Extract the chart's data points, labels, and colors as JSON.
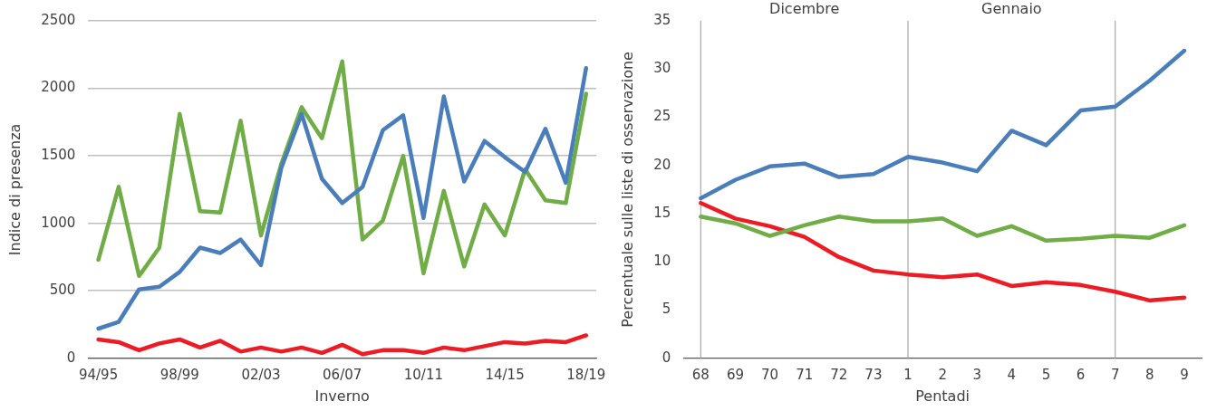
{
  "chart_data": [
    {
      "type": "line",
      "xlabel": "Inverno",
      "ylabel": "Indice di presenza",
      "categories": [
        "94/95",
        null,
        null,
        null,
        "98/99",
        null,
        null,
        null,
        "02/03",
        null,
        null,
        null,
        "06/07",
        null,
        null,
        null,
        "10/11",
        null,
        null,
        null,
        "14/15",
        null,
        null,
        null,
        "18/19"
      ],
      "series": [
        {
          "color": "#4a7ebb",
          "values": [
            220,
            270,
            510,
            530,
            640,
            820,
            780,
            880,
            690,
            1410,
            1810,
            1330,
            1150,
            1270,
            1690,
            1800,
            1040,
            1940,
            1310,
            1610,
            1490,
            1380,
            1700,
            1300,
            2150
          ]
        },
        {
          "color": "#70ad47",
          "values": [
            730,
            1270,
            610,
            820,
            1810,
            1090,
            1080,
            1760,
            910,
            1440,
            1860,
            1630,
            2200,
            880,
            1020,
            1500,
            630,
            1240,
            680,
            1140,
            910,
            1400,
            1170,
            1150,
            1960
          ]
        },
        {
          "color": "#ed1c24",
          "values": [
            140,
            120,
            60,
            110,
            140,
            80,
            130,
            50,
            80,
            50,
            80,
            40,
            100,
            30,
            60,
            60,
            40,
            80,
            60,
            90,
            120,
            110,
            130,
            120,
            170
          ]
        }
      ],
      "ylim": [
        0,
        2500
      ],
      "yticks": [
        0,
        500,
        1000,
        1500,
        2000,
        2500
      ],
      "grid": "y",
      "line_style": "solid"
    },
    {
      "type": "line",
      "xlabel": "Pentadi",
      "ylabel": "Percentuale sulle liste di osservazione",
      "categories": [
        "68",
        "69",
        "70",
        "71",
        "72",
        "73",
        "1",
        "2",
        "3",
        "4",
        "5",
        "6",
        "7",
        "8",
        "9"
      ],
      "series": [
        {
          "color": "#4a7ebb",
          "values": [
            16.6,
            18.5,
            19.9,
            20.2,
            18.8,
            19.1,
            20.9,
            20.3,
            19.4,
            23.6,
            22.1,
            25.7,
            26.1,
            28.8,
            31.9
          ]
        },
        {
          "color": "#70ad47",
          "values": [
            14.7,
            14.0,
            12.7,
            13.8,
            14.7,
            14.2,
            14.2,
            14.5,
            12.7,
            13.7,
            12.2,
            12.4,
            12.7,
            12.5,
            13.8
          ]
        },
        {
          "color": "#ed1c24",
          "values": [
            16.1,
            14.5,
            13.7,
            12.6,
            10.5,
            9.1,
            8.7,
            8.4,
            8.7,
            7.5,
            7.9,
            7.6,
            6.9,
            6.0,
            6.3
          ]
        }
      ],
      "ylim": [
        0,
        35
      ],
      "yticks": [
        0,
        5,
        10,
        15,
        20,
        25,
        30,
        35
      ],
      "grid": false,
      "line_style": "solid",
      "ref_lines": [
        {
          "axis": "x",
          "value": "68",
          "color": "#a6a6a6"
        },
        {
          "axis": "x",
          "value": "1",
          "color": "#a6a6a6"
        },
        {
          "axis": "x",
          "value": "7",
          "color": "#a6a6a6"
        }
      ],
      "annotations": [
        "Dicembre",
        "Gennaio"
      ]
    }
  ]
}
